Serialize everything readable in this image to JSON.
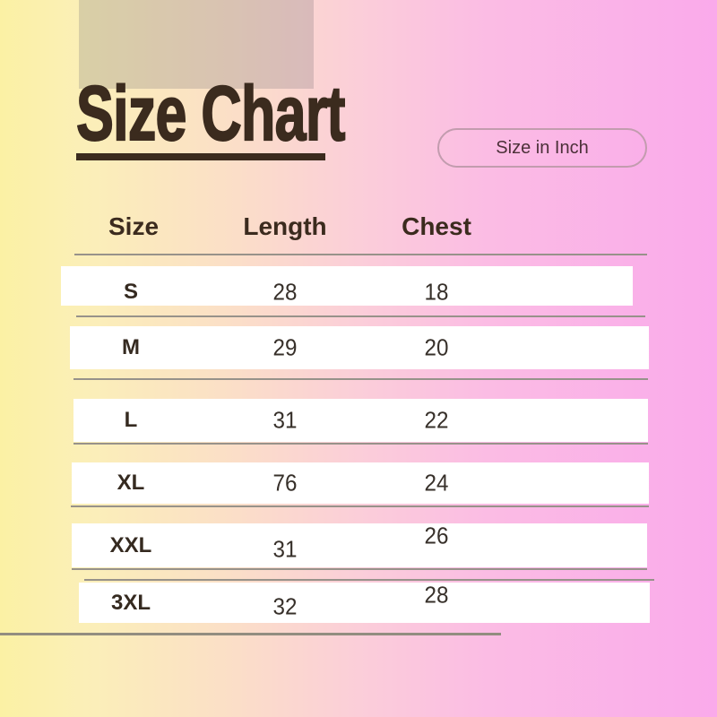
{
  "chart_data": {
    "type": "table",
    "title": "Size Chart",
    "unit_label": "Size in Inch",
    "columns": [
      "Size",
      "Length",
      "Chest"
    ],
    "rows": [
      [
        "S",
        28,
        18
      ],
      [
        "M",
        29,
        20
      ],
      [
        "L",
        31,
        22
      ],
      [
        "XL",
        76,
        24
      ],
      [
        "XXL",
        31,
        26
      ],
      [
        "3XL",
        32,
        28
      ]
    ]
  },
  "header": {
    "title": "Size Chart",
    "unit_badge": "Size in Inch"
  },
  "table": {
    "headers": {
      "size": "Size",
      "length": "Length",
      "chest": "Chest"
    },
    "rows": [
      {
        "size": "S",
        "length": "28",
        "chest": "18"
      },
      {
        "size": "M",
        "length": "29",
        "chest": "20"
      },
      {
        "size": "L",
        "length": "31",
        "chest": "22"
      },
      {
        "size": "XL",
        "length": "76",
        "chest": "24"
      },
      {
        "size": "XXL",
        "length": "31",
        "chest": "26"
      },
      {
        "size": "3XL",
        "length": "32",
        "chest": "28"
      }
    ]
  },
  "colors": {
    "title_text": "#3B2B1E",
    "number_text": "#37302A",
    "separator_line": "#97928A",
    "pill_border": "#C29CAE",
    "pill_text": "#4B3038",
    "bg_gradient_left": "#FBF1A4",
    "bg_gradient_right": "#FAAAEB",
    "row_band": "#FFFFFF"
  }
}
